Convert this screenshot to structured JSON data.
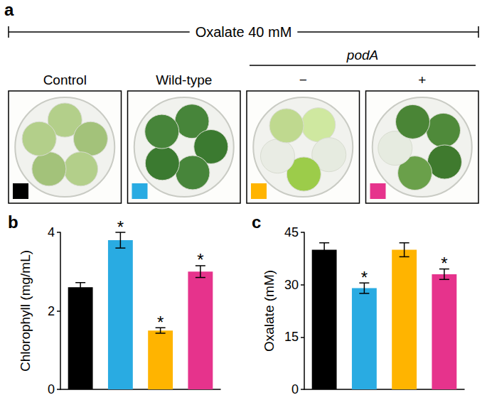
{
  "panel_a": {
    "label": "a",
    "header": "Oxalate 40 mM",
    "columns": [
      {
        "label": "Control",
        "color": "#000000"
      },
      {
        "label": "Wild-type",
        "color": "#29abe2"
      },
      {
        "label": "podA",
        "sub": [
          {
            "label": "−",
            "color": "#ffb400"
          },
          {
            "label": "+",
            "color": "#e6338c"
          }
        ]
      }
    ]
  },
  "chart_data": [
    {
      "type": "bar",
      "title": "b",
      "ylabel": "Chlorophyll (mg/mL)",
      "categories": [
        null,
        null,
        null,
        null
      ],
      "values": [
        2.6,
        3.8,
        1.5,
        3.0
      ],
      "errors": [
        0.12,
        0.2,
        0.07,
        0.15
      ],
      "significance": [
        null,
        "*",
        "*",
        "*"
      ],
      "colors": [
        "#000000",
        "#29abe2",
        "#ffb400",
        "#e6338c"
      ],
      "ylim": [
        0,
        4
      ],
      "yticks": [
        0,
        2,
        4
      ],
      "grid": false,
      "tick_labels": "y"
    },
    {
      "type": "bar",
      "title": "c",
      "ylabel": "Oxalate (mM)",
      "categories": [
        null,
        null,
        null,
        null
      ],
      "values": [
        40,
        29,
        40,
        33
      ],
      "errors": [
        2,
        1.5,
        2,
        1.5
      ],
      "significance": [
        null,
        "*",
        null,
        "*"
      ],
      "colors": [
        "#000000",
        "#29abe2",
        "#ffb400",
        "#e6338c"
      ],
      "ylim": [
        0,
        45
      ],
      "yticks": [
        0,
        15,
        30,
        45
      ],
      "grid": false,
      "tick_labels": "y"
    }
  ]
}
